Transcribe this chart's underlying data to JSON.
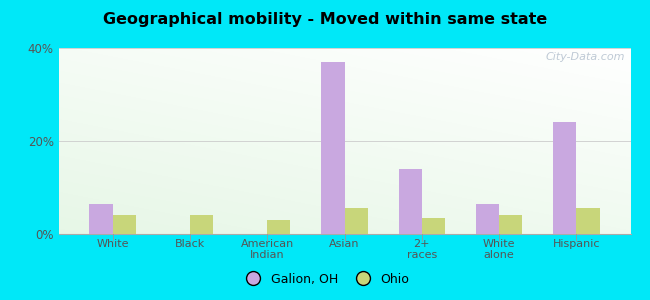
{
  "title": "Geographical mobility - Moved within same state",
  "categories": [
    "White",
    "Black",
    "American\nIndian",
    "Asian",
    "2+\nraces",
    "White\nalone",
    "Hispanic"
  ],
  "galion_values": [
    6.5,
    0,
    0,
    37.0,
    14.0,
    6.5,
    24.0
  ],
  "ohio_values": [
    4.0,
    4.0,
    3.0,
    5.5,
    3.5,
    4.0,
    5.5
  ],
  "galion_color": "#c9a8e0",
  "ohio_color": "#c8d67a",
  "outer_bg": "#00e8f8",
  "ylim": [
    0,
    40
  ],
  "yticks": [
    0,
    20,
    40
  ],
  "ytick_labels": [
    "0%",
    "20%",
    "40%"
  ],
  "legend_galion": "Galion, OH",
  "legend_ohio": "Ohio",
  "watermark": "City-Data.com",
  "bar_width": 0.3
}
